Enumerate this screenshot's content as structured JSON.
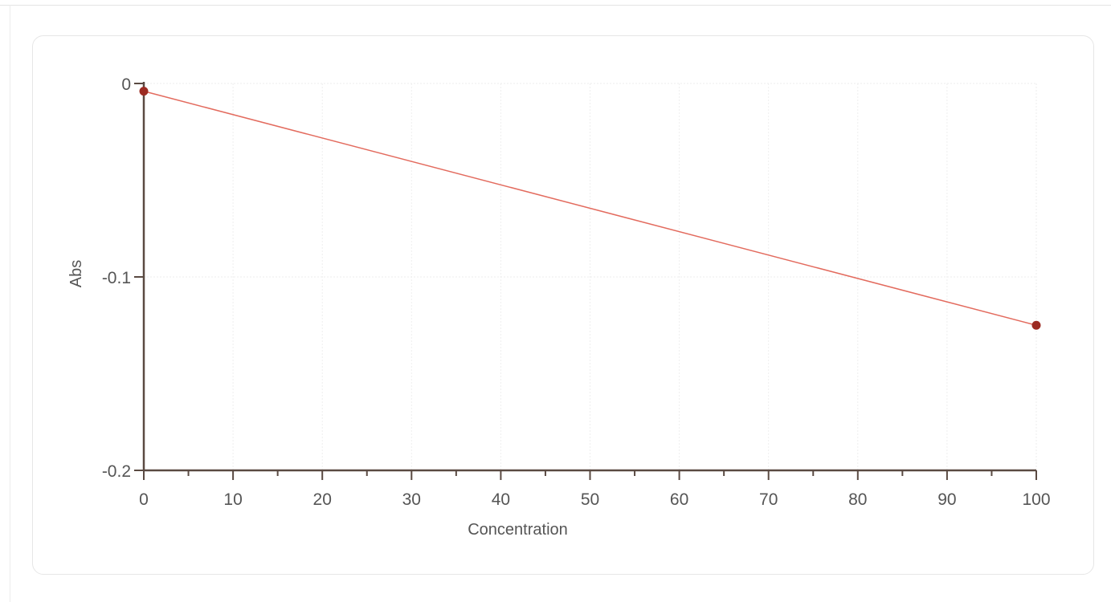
{
  "chart_data": {
    "type": "line",
    "title": "",
    "xlabel": "Concentration",
    "ylabel": "Abs",
    "xlim": [
      0,
      100
    ],
    "ylim": [
      -0.2,
      0
    ],
    "x_ticks": [
      0,
      10,
      20,
      30,
      40,
      50,
      60,
      70,
      80,
      90,
      100
    ],
    "x_tick_labels": [
      "0",
      "10",
      "20",
      "30",
      "40",
      "50",
      "60",
      "70",
      "80",
      "90",
      "100"
    ],
    "x_minor_step": 5,
    "y_ticks": [
      0,
      -0.1,
      -0.2
    ],
    "y_tick_labels": [
      "0",
      "-0.1",
      "-0.2"
    ],
    "grid": true,
    "legend": "none",
    "series": [
      {
        "x": [
          0,
          100
        ],
        "y": [
          -0.004,
          -0.125
        ],
        "marker_color": "#9c2b22",
        "line_color": "#e36b5e"
      }
    ],
    "colors": {
      "axis": "#5a4a42",
      "grid": "#eeeeee",
      "text": "#555555"
    }
  }
}
